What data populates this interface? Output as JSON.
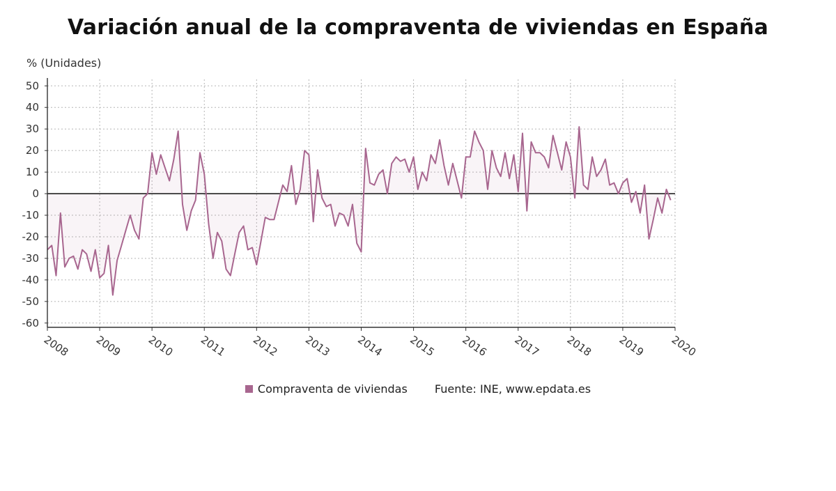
{
  "title": "Variación anual de la compraventa de viviendas en España",
  "source": "Fuente: INE, www.epdata.es",
  "chart_data": {
    "type": "line",
    "title": "Variación anual de la compraventa de viviendas en España",
    "ylabel": "% (Unidades)",
    "xlabel": "",
    "ylim": [
      -62,
      53
    ],
    "xlim": [
      2008,
      2020
    ],
    "yticks": [
      50,
      40,
      30,
      20,
      10,
      0,
      -10,
      -20,
      -30,
      -40,
      -50,
      -60
    ],
    "xticks": [
      "2008",
      "2009",
      "2010",
      "2011",
      "2012",
      "2013",
      "2014",
      "2015",
      "2016",
      "2017",
      "2018",
      "2019",
      "2020"
    ],
    "grid": true,
    "legend_position": "bottom",
    "series": [
      {
        "name": "Compraventa de viviendas",
        "color": "#a8668f",
        "x_start": "2008-01",
        "frequency": "monthly",
        "values": [
          -26,
          -24,
          -38,
          -9,
          -34,
          -30,
          -29,
          -35,
          -26,
          -28,
          -36,
          -26,
          -39,
          -37,
          -24,
          -47,
          -31,
          -24,
          -17,
          -10,
          -17,
          -21,
          -2,
          0,
          19,
          9,
          18,
          12,
          6,
          16,
          29,
          -5,
          -17,
          -8,
          -3,
          19,
          9,
          -14,
          -30,
          -18,
          -22,
          -35,
          -38,
          -28,
          -18,
          -15,
          -26,
          -25,
          -33,
          -22,
          -11,
          -12,
          -12,
          -4,
          4,
          1,
          13,
          -5,
          2,
          20,
          18,
          -13,
          11,
          -2,
          -6,
          -5,
          -15,
          -9,
          -10,
          -15,
          -5,
          -23,
          -27,
          21,
          5,
          4,
          9,
          11,
          0,
          14,
          17,
          15,
          16,
          10,
          17,
          2,
          10,
          6,
          18,
          14,
          25,
          13,
          4,
          14,
          6,
          -2,
          17,
          17,
          29,
          24,
          20,
          2,
          20,
          12,
          8,
          19,
          7,
          18,
          1,
          28,
          -8,
          24,
          19,
          19,
          17,
          12,
          27,
          19,
          11,
          24,
          17,
          -2,
          31,
          4,
          2,
          17,
          8,
          11,
          16,
          4,
          5,
          0,
          5,
          7,
          -4,
          1,
          -9,
          4,
          -21,
          -12,
          -2,
          -9,
          2,
          -3
        ]
      }
    ]
  }
}
